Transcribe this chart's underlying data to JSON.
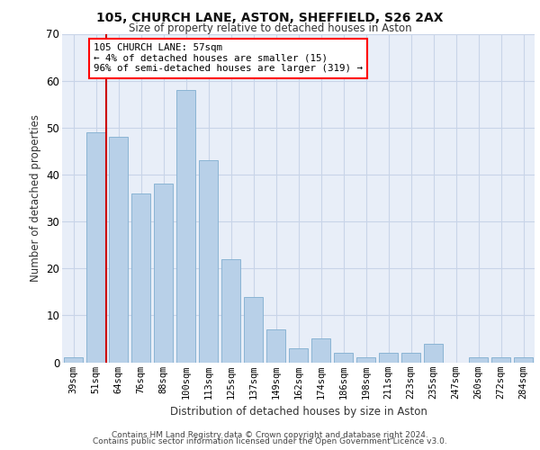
{
  "title1": "105, CHURCH LANE, ASTON, SHEFFIELD, S26 2AX",
  "title2": "Size of property relative to detached houses in Aston",
  "xlabel": "Distribution of detached houses by size in Aston",
  "ylabel": "Number of detached properties",
  "categories": [
    "39sqm",
    "51sqm",
    "64sqm",
    "76sqm",
    "88sqm",
    "100sqm",
    "113sqm",
    "125sqm",
    "137sqm",
    "149sqm",
    "162sqm",
    "174sqm",
    "186sqm",
    "198sqm",
    "211sqm",
    "223sqm",
    "235sqm",
    "247sqm",
    "260sqm",
    "272sqm",
    "284sqm"
  ],
  "values": [
    1,
    49,
    48,
    36,
    38,
    58,
    43,
    22,
    14,
    7,
    3,
    5,
    2,
    1,
    2,
    2,
    4,
    0,
    1,
    1,
    1
  ],
  "bar_color": "#b8d0e8",
  "bar_edge_color": "#8ab4d4",
  "grid_color": "#c8d4e8",
  "background_color": "#e8eef8",
  "annotation_text": "105 CHURCH LANE: 57sqm\n← 4% of detached houses are smaller (15)\n96% of semi-detached houses are larger (319) →",
  "footer1": "Contains HM Land Registry data © Crown copyright and database right 2024.",
  "footer2": "Contains public sector information licensed under the Open Government Licence v3.0.",
  "ylim": [
    0,
    70
  ],
  "yticks": [
    0,
    10,
    20,
    30,
    40,
    50,
    60,
    70
  ]
}
